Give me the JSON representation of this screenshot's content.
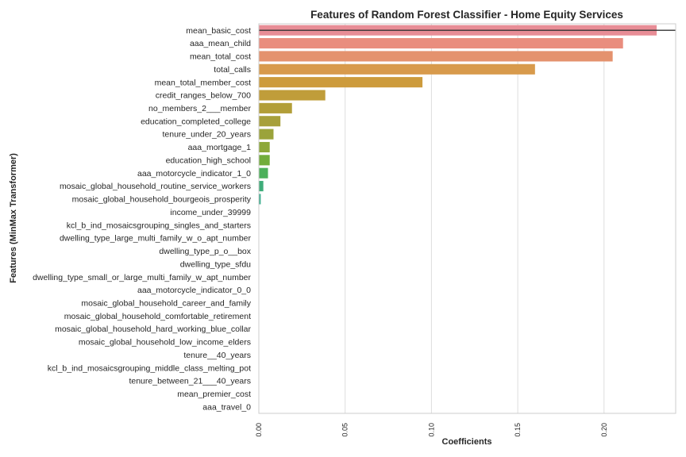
{
  "chart_data": {
    "type": "bar",
    "orientation": "horizontal",
    "title": "Features of Random Forest Classifier - Home Equity Services",
    "xlabel": "Coefficients",
    "ylabel": "Features (MinMax Transformer)",
    "xlim": [
      0,
      0.2415
    ],
    "xticks": [
      "0.00",
      "0.05",
      "0.10",
      "0.15",
      "0.20"
    ],
    "xtick_values": [
      0,
      0.05,
      0.1,
      0.15,
      0.2
    ],
    "grid": "vertical",
    "reference_line": 0.2325,
    "categories": [
      "mean_basic_cost",
      "aaa_mean_child",
      "mean_total_cost",
      "total_calls",
      "mean_total_member_cost",
      "credit_ranges_below_700",
      "no_members_2___member",
      "education_completed_college",
      "tenure_under_20_years",
      "aaa_mortgage_1",
      "education_high_school",
      "aaa_motorcycle_indicator_1_0",
      "mosaic_global_household_routine_service_workers",
      "mosaic_global_household_bourgeois_prosperity",
      "income_under_39999",
      "kcl_b_ind_mosaicsgrouping_singles_and_starters",
      "dwelling_type_large_multi_family_w_o_apt_number",
      "dwelling_type_p_o__box",
      "dwelling_type_sfdu",
      "dwelling_type_small_or_large_multi_family_w_apt_number",
      "aaa_motorcycle_indicator_0_0",
      "mosaic_global_household_career_and_family",
      "mosaic_global_household_comfortable_retirement",
      "mosaic_global_household_hard_working_blue_collar",
      "mosaic_global_household_low_income_elders",
      "tenure__40_years",
      "kcl_b_ind_mosaicsgrouping_middle_class_melting_pot",
      "tenure_between_21___40_years",
      "mean_premier_cost",
      "aaa_travel_0"
    ],
    "values": [
      0.2305,
      0.211,
      0.205,
      0.16,
      0.0948,
      0.0385,
      0.0192,
      0.0125,
      0.0085,
      0.0063,
      0.0063,
      0.0053,
      0.0026,
      0.0011,
      0,
      0,
      0,
      0,
      0,
      0,
      0,
      0,
      0,
      0,
      0,
      0,
      0,
      0,
      0,
      0
    ],
    "colors": [
      "#e88d96",
      "#e98d7e",
      "#e4926e",
      "#d89a4c",
      "#cd9b3c",
      "#c09d3a",
      "#b29e38",
      "#a7a03b",
      "#9ba33b",
      "#8da839",
      "#72ad3b",
      "#4cb05a",
      "#3fad7a",
      "#3cad8e",
      "#3aae9d",
      "#3dadad",
      "#3eacbb",
      "#41abc9",
      "#47a8d6",
      "#5aa3e0",
      "#7a9ae6",
      "#9390e9",
      "#a585ea",
      "#b87be7",
      "#cb71df",
      "#d96bd2",
      "#e26ac4",
      "#e66cb5",
      "#e875a6",
      "#e98098"
    ]
  }
}
